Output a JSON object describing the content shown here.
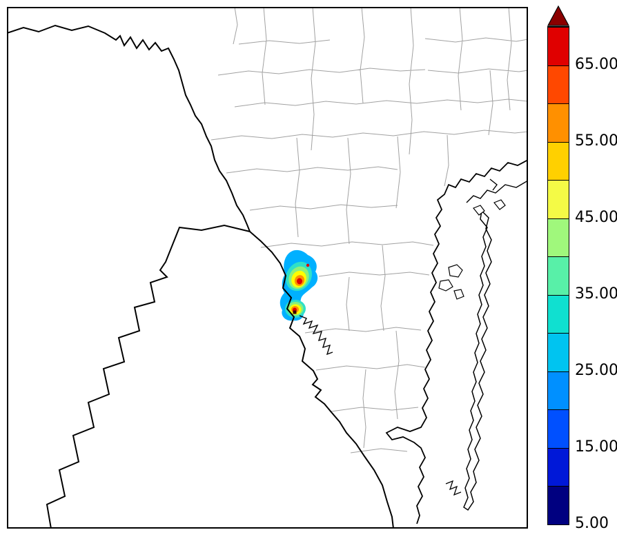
{
  "page": {
    "background": "#ffffff"
  },
  "map": {
    "frame_color": "#000000",
    "county_line_color": "#a0a0a0",
    "boundary_color": "#000000",
    "water_fill": "#ffffff"
  },
  "plume": {
    "colors": {
      "outer": "#00b0ff",
      "turquoise": "#2fe0c8",
      "green": "#8df07a",
      "yellow": "#ffff00",
      "orange": "#ff9000",
      "red": "#e00000",
      "marker": "#3a0000"
    }
  },
  "colorbar": {
    "unit_min": 5,
    "unit_max": 70,
    "overflow_arrow_color": "#8b0000",
    "ticks": [
      {
        "value": 65,
        "label": "65.00"
      },
      {
        "value": 55,
        "label": "55.00"
      },
      {
        "value": 45,
        "label": "45.00"
      },
      {
        "value": 35,
        "label": "35.00"
      },
      {
        "value": 25,
        "label": "25.00"
      },
      {
        "value": 15,
        "label": "15.00"
      },
      {
        "value": 5,
        "label": "5.00"
      }
    ],
    "segments": [
      {
        "from": 5,
        "to": 10,
        "color": "#000080"
      },
      {
        "from": 10,
        "to": 15,
        "color": "#0018d8"
      },
      {
        "from": 15,
        "to": 20,
        "color": "#0050ff"
      },
      {
        "from": 20,
        "to": 25,
        "color": "#0090ff"
      },
      {
        "from": 25,
        "to": 30,
        "color": "#00c4f0"
      },
      {
        "from": 30,
        "to": 35,
        "color": "#10e0d0"
      },
      {
        "from": 35,
        "to": 40,
        "color": "#58f0a8"
      },
      {
        "from": 40,
        "to": 45,
        "color": "#a0f87c"
      },
      {
        "from": 45,
        "to": 50,
        "color": "#f4fa46"
      },
      {
        "from": 50,
        "to": 55,
        "color": "#ffd000"
      },
      {
        "from": 55,
        "to": 60,
        "color": "#ff9000"
      },
      {
        "from": 60,
        "to": 65,
        "color": "#ff4800"
      },
      {
        "from": 65,
        "to": 70,
        "color": "#e00000"
      }
    ]
  },
  "chart_data": {
    "type": "heatmap",
    "title": "",
    "legend_position": "right-colorbar",
    "colorbar_range": [
      5,
      70
    ],
    "colorbar_tick_labels": [
      "65.00",
      "55.00",
      "45.00",
      "35.00",
      "25.00",
      "15.00",
      "5.00"
    ],
    "overflow_above": 70,
    "plume": {
      "location": "center of map, straddling a thick county/border line",
      "hotspots": [
        {
          "lobe": "upper",
          "approx_peak_value": "65+"
        },
        {
          "lobe": "lower",
          "approx_peak_value": "65+"
        }
      ],
      "outer_contour_approx_value": 25
    },
    "description": "Gridded concentration plume over a county-outline map of a Gulf coastal region with barrier island and lagoon; plume shades span roughly 25 to >65 with two red hotspot cores."
  }
}
